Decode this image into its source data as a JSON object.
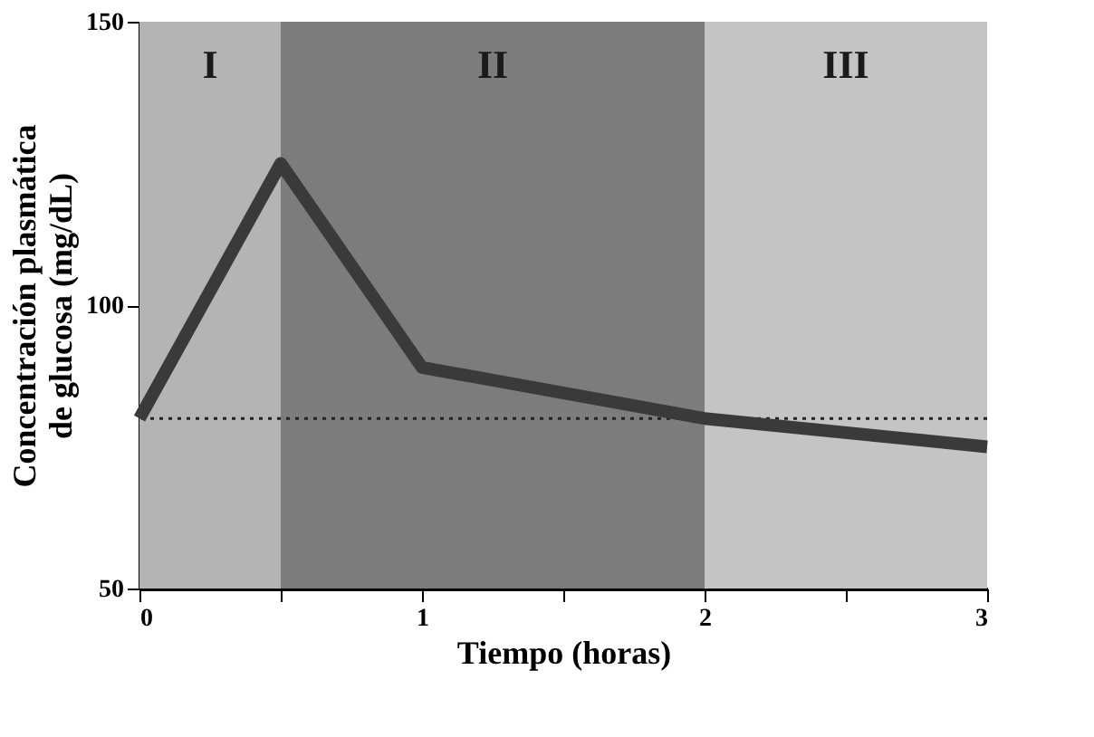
{
  "chart_data": {
    "type": "line",
    "xlabel": "Tiempo (horas)",
    "ylabel": "Concentración plasmática\nde glucosa (mg/dL)",
    "x": [
      0,
      0.5,
      1,
      2,
      3
    ],
    "series": [
      {
        "color": "#3a3a3a",
        "values": [
          80,
          125,
          89,
          80,
          75
        ]
      }
    ],
    "xlim": [
      0,
      3
    ],
    "xticks": [
      0,
      {
        "value": 0.5,
        "label": null
      },
      1,
      {
        "value": 1.5,
        "label": null
      },
      2,
      {
        "value": 2.5,
        "label": null
      },
      3
    ],
    "ylim": [
      50,
      150
    ],
    "yticks": [
      50,
      100,
      150
    ],
    "ref_lines": [
      {
        "axis": "y",
        "value": 80,
        "line_style": "dotted",
        "color": "#222222"
      }
    ],
    "bands": [
      {
        "axis": "x",
        "from": 0,
        "to": 0.5,
        "label": "I",
        "color": "#b4b4b4"
      },
      {
        "axis": "x",
        "from": 0.5,
        "to": 2,
        "label": "II",
        "color": "#7c7c7c"
      },
      {
        "axis": "x",
        "from": 2,
        "to": 3,
        "label": "III",
        "color": "#c4c4c4"
      }
    ],
    "grid": false,
    "marker": "none",
    "line_style": "solid"
  }
}
